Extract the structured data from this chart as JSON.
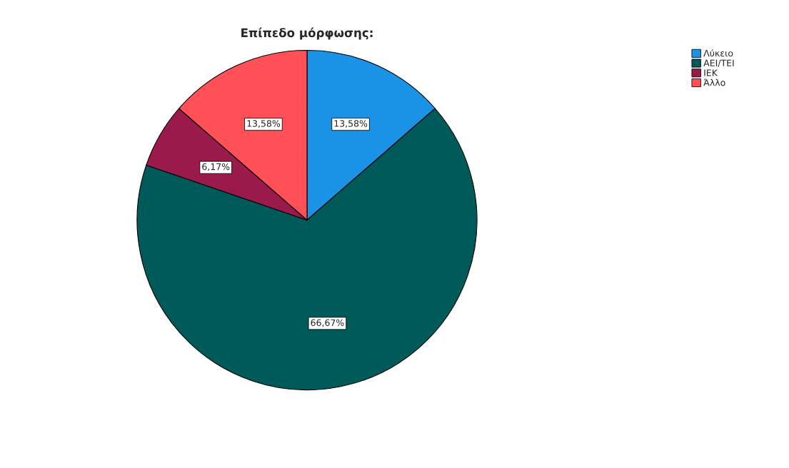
{
  "chart_data": {
    "type": "pie",
    "title": "Επίπεδο μόρφωσης:",
    "categories": [
      "Λύκειο",
      "ΑΕΙ/ΤΕΙ",
      "ΙΕΚ",
      "Άλλο"
    ],
    "values": [
      13.58,
      66.67,
      6.17,
      13.58
    ],
    "colors": [
      "#1a93e6",
      "#005a5a",
      "#9b1a4c",
      "#ff5057"
    ],
    "value_labels": [
      "13,58%",
      "66,67%",
      "6,17%",
      "13,58%"
    ],
    "legend": "top right"
  }
}
